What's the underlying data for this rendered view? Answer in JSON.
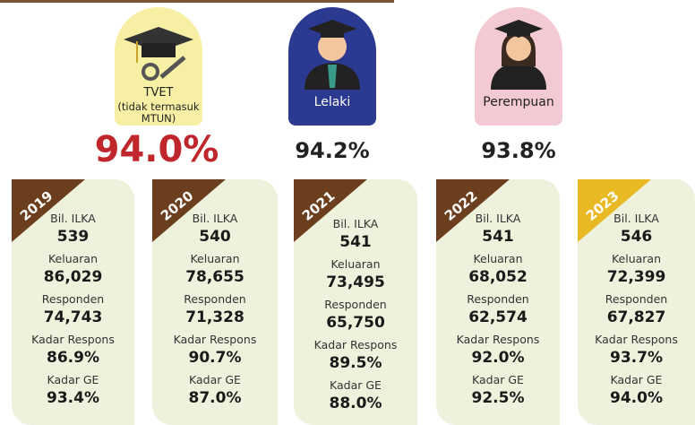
{
  "header": {
    "tvet": {
      "label_lines": [
        "TVET",
        "(tidak termasuk",
        "MTUN)"
      ],
      "value": "94.0%"
    },
    "lelaki": {
      "label": "Lelaki",
      "value": "94.2%"
    },
    "perempuan": {
      "label": "Perempuan",
      "value": "93.8%"
    }
  },
  "years": [
    {
      "year": "2019",
      "fields": [
        {
          "label": "Bil. ILKA",
          "value": "539"
        },
        {
          "label": "Keluaran",
          "value": "86,029"
        },
        {
          "label": "Responden",
          "value": "74,743"
        },
        {
          "label": "Kadar Respons",
          "value": "86.9%"
        },
        {
          "label": "Kadar GE",
          "value": "93.4%"
        }
      ]
    },
    {
      "year": "2020",
      "fields": [
        {
          "label": "Bil. ILKA",
          "value": "540"
        },
        {
          "label": "Keluaran",
          "value": "78,655"
        },
        {
          "label": "Responden",
          "value": "71,328"
        },
        {
          "label": "Kadar Respons",
          "value": "90.7%"
        },
        {
          "label": "Kadar GE",
          "value": "87.0%"
        }
      ]
    },
    {
      "year": "2021",
      "fields": [
        {
          "label": "Bil. ILKA",
          "value": "541"
        },
        {
          "label": "Keluaran",
          "value": "73,495"
        },
        {
          "label": "Responden",
          "value": "65,750"
        },
        {
          "label": "Kadar Respons",
          "value": "89.5%"
        },
        {
          "label": "Kadar GE",
          "value": "88.0%"
        }
      ]
    },
    {
      "year": "2022",
      "fields": [
        {
          "label": "Bil. ILKA",
          "value": "541"
        },
        {
          "label": "Keluaran",
          "value": "68,052"
        },
        {
          "label": "Responden",
          "value": "62,574"
        },
        {
          "label": "Kadar Respons",
          "value": "92.0%"
        },
        {
          "label": "Kadar GE",
          "value": "92.5%"
        }
      ]
    },
    {
      "year": "2023",
      "fields": [
        {
          "label": "Bil. ILKA",
          "value": "546"
        },
        {
          "label": "Keluaran",
          "value": "72,399"
        },
        {
          "label": "Responden",
          "value": "67,827"
        },
        {
          "label": "Kadar Respons",
          "value": "93.7%"
        },
        {
          "label": "Kadar GE",
          "value": "94.0%"
        }
      ]
    }
  ]
}
